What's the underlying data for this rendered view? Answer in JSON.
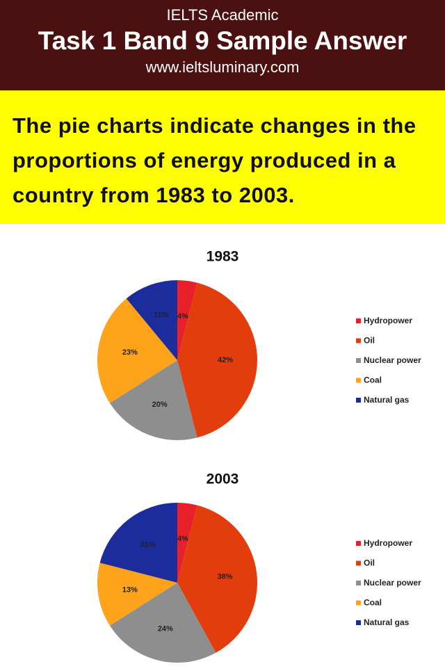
{
  "header": {
    "subtitle": "IELTS Academic",
    "title": "Task 1 Band 9 Sample Answer",
    "url": "www.ieltsluminary.com"
  },
  "question": "The pie charts indicate changes in the proportions of energy produced in a country from 1983 to 2003.",
  "chart_data": [
    {
      "type": "pie",
      "title": "1983",
      "categories": [
        "Hydropower",
        "Oil",
        "Nuclear power",
        "Coal",
        "Natural gas"
      ],
      "values": [
        4,
        42,
        20,
        23,
        11
      ],
      "value_labels": [
        "4%",
        "42%",
        "20%",
        "23%",
        "11%"
      ],
      "colors": [
        "#e8202a",
        "#e33d0e",
        "#8e8e8e",
        "#ffa31a",
        "#1c2c9a"
      ]
    },
    {
      "type": "pie",
      "title": "2003",
      "categories": [
        "Hydropower",
        "Oil",
        "Nuclear power",
        "Coal",
        "Natural gas"
      ],
      "values": [
        4,
        38,
        24,
        13,
        21
      ],
      "value_labels": [
        "4%",
        "38%",
        "24%",
        "13%",
        "21%"
      ],
      "colors": [
        "#e8202a",
        "#e33d0e",
        "#8e8e8e",
        "#ffa31a",
        "#1c2c9a"
      ]
    }
  ]
}
